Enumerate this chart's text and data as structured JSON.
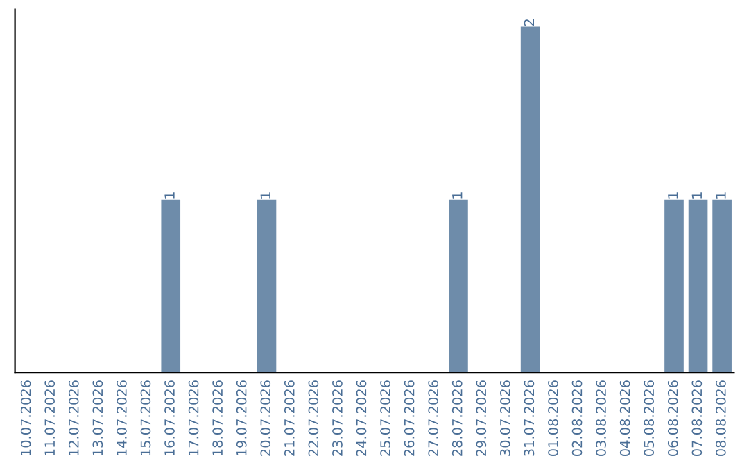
{
  "chart_data": {
    "type": "bar",
    "categories": [
      "10.07.2026",
      "11.07.2026",
      "12.07.2026",
      "13.07.2026",
      "14.07.2026",
      "15.07.2026",
      "16.07.2026",
      "17.07.2026",
      "18.07.2026",
      "19.07.2026",
      "20.07.2026",
      "21.07.2026",
      "22.07.2026",
      "23.07.2026",
      "24.07.2026",
      "25.07.2026",
      "26.07.2026",
      "27.07.2026",
      "28.07.2026",
      "29.07.2026",
      "30.07.2026",
      "31.07.2026",
      "01.08.2026",
      "02.08.2026",
      "03.08.2026",
      "04.08.2026",
      "05.08.2026",
      "06.08.2026",
      "07.08.2026",
      "08.08.2026"
    ],
    "values": [
      0,
      0,
      0,
      0,
      0,
      0,
      1,
      0,
      0,
      0,
      1,
      0,
      0,
      0,
      0,
      0,
      0,
      0,
      1,
      0,
      0,
      2,
      0,
      0,
      0,
      0,
      0,
      1,
      1,
      1
    ],
    "value_labels": [
      null,
      null,
      null,
      null,
      null,
      null,
      "1",
      null,
      null,
      null,
      "1",
      null,
      null,
      null,
      null,
      null,
      null,
      null,
      "1",
      null,
      null,
      "2",
      null,
      null,
      null,
      null,
      null,
      "1",
      "1",
      "1"
    ],
    "color": "#6e8caa",
    "tick_labels": "x",
    "grid": false,
    "legend": false
  }
}
